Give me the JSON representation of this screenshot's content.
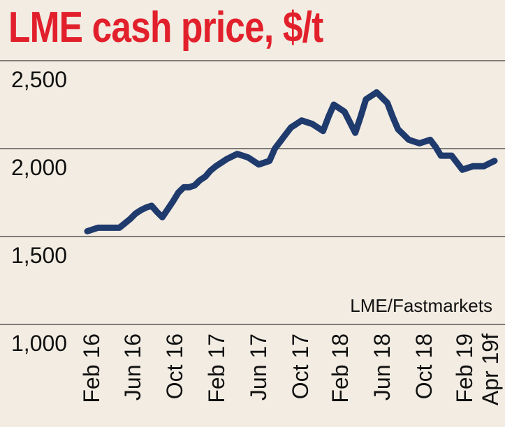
{
  "chart_data": {
    "type": "line",
    "title": "LME cash price, $/t",
    "source": "LME/Fastmarkets",
    "xlabel": "",
    "ylabel": "$/t",
    "ylim": [
      1000,
      2500
    ],
    "yticks": [
      1000,
      1500,
      2000,
      2500
    ],
    "ytick_labels": [
      "1,000",
      "1,500",
      "2,000",
      "2,500"
    ],
    "categories": [
      "Feb 16",
      "Jun 16",
      "Oct 16",
      "Feb 17",
      "Jun 17",
      "Oct 17",
      "Feb 18",
      "Jun 18",
      "Oct 18",
      "Feb 19",
      "Apr 19f"
    ],
    "series": [
      {
        "name": "LME cash price",
        "color": "#1f3a6d",
        "x": [
          0,
          0.5,
          1,
          1.5,
          2,
          2.5,
          3,
          3.5,
          4,
          4.5,
          5,
          5.5,
          6,
          6.5,
          7,
          7.5,
          8,
          8.5,
          9,
          9.5,
          10,
          10.5,
          11,
          11.5,
          12,
          12.5,
          13,
          13.5,
          14,
          14.5,
          15,
          15.5,
          16,
          16.5,
          17,
          17.5,
          18,
          18.5,
          19,
          19.5,
          20,
          20.5,
          21,
          21.5,
          22,
          22.5,
          23,
          23.5,
          24,
          24.5,
          25,
          25.5,
          26,
          26.5,
          27,
          27.5,
          28,
          28.5,
          29,
          29.5,
          30,
          30.5,
          31,
          31.5,
          32,
          32.5,
          33,
          33.5,
          34,
          34.5,
          35,
          35.5,
          36,
          36.5,
          37,
          37.5,
          38
        ],
        "values": [
          1530,
          1540,
          1550,
          1550,
          1550,
          1550,
          1550,
          1575,
          1600,
          1630,
          1650,
          1665,
          1675,
          1640,
          1610,
          1655,
          1700,
          1750,
          1780,
          1780,
          1790,
          1820,
          1840,
          1875,
          1900,
          1920,
          1940,
          1955,
          1970,
          1960,
          1950,
          1930,
          1910,
          1920,
          1930,
          2000,
          2040,
          2080,
          2120,
          2140,
          2160,
          2150,
          2140,
          2120,
          2100,
          2180,
          2250,
          2230,
          2210,
          2150,
          2090,
          2180,
          2280,
          2300,
          2320,
          2290,
          2260,
          2180,
          2110,
          2080,
          2050,
          2040,
          2030,
          2040,
          2050,
          2010,
          1960,
          1960,
          1960,
          1920,
          1880,
          1890,
          1900,
          1900,
          1900,
          1915,
          1930
        ]
      }
    ],
    "grid": "horizontal",
    "colors": {
      "background": "#f2ece2",
      "title": "#e2202c",
      "gridline": "#3a3a3a",
      "line": "#1f3a6d",
      "text": "#111111"
    }
  }
}
